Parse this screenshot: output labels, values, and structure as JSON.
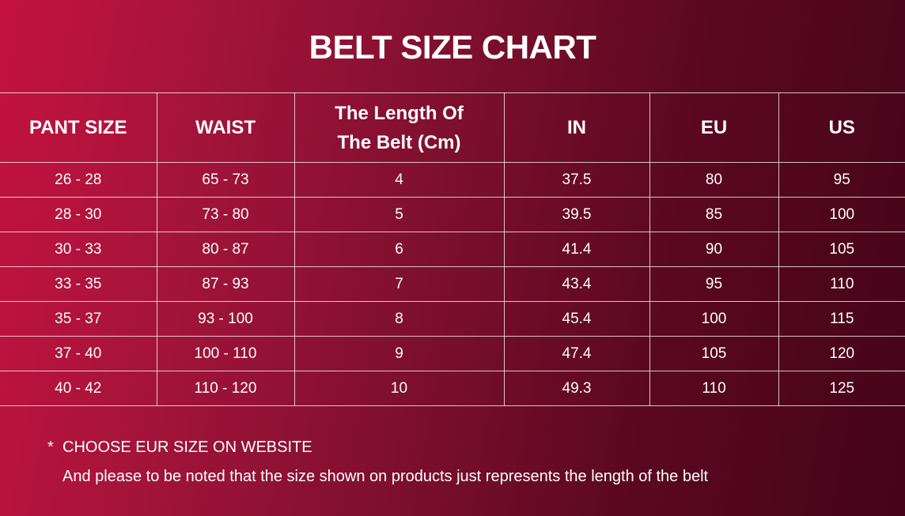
{
  "title": "BELT SIZE CHART",
  "colors": {
    "gradient_start": "#c4123f",
    "gradient_end": "#45041a",
    "text": "#ffffff"
  },
  "table": {
    "headers": [
      "PANT SIZE",
      "WAIST",
      "The Length Of The Belt (Cm)",
      "IN",
      "EU",
      "US"
    ],
    "header_lines": {
      "length_line1": "The Length Of",
      "length_line2": "The Belt (Cm)"
    },
    "rows": [
      [
        "26 - 28",
        "65 - 73",
        "4",
        "37.5",
        "80",
        "95"
      ],
      [
        "28 - 30",
        "73 - 80",
        "5",
        "39.5",
        "85",
        "100"
      ],
      [
        "30 - 33",
        "80 - 87",
        "6",
        "41.4",
        "90",
        "105"
      ],
      [
        "33 - 35",
        "87 - 93",
        "7",
        "43.4",
        "95",
        "110"
      ],
      [
        "35 - 37",
        "93 - 100",
        "8",
        "45.4",
        "100",
        "115"
      ],
      [
        "37 - 40",
        "100 - 110",
        "9",
        "47.4",
        "105",
        "120"
      ],
      [
        "40 - 42",
        "110 - 120",
        "10",
        "49.3",
        "110",
        "125"
      ]
    ]
  },
  "note": {
    "bullet": "*",
    "line1": "CHOOSE EUR SIZE ON WEBSITE",
    "line2": "And please to be noted that the size shown on products just represents the length of the belt"
  }
}
